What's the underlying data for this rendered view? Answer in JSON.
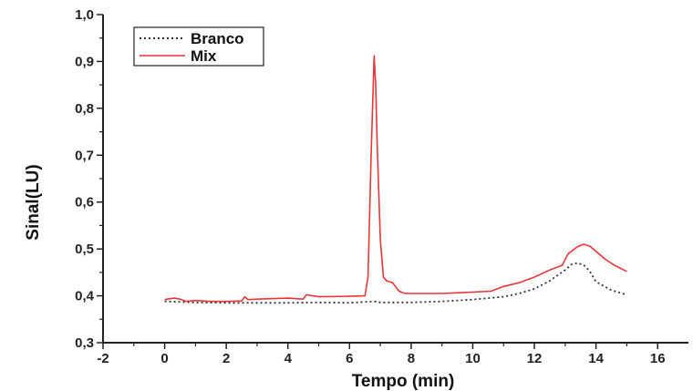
{
  "chart_data": {
    "type": "line",
    "title": "",
    "xlabel": "Tempo (min)",
    "ylabel": "Sinal(LU)",
    "xlim": [
      -2,
      17
    ],
    "ylim": [
      0.3,
      1.0
    ],
    "x_ticks": [
      -2,
      0,
      2,
      4,
      6,
      8,
      10,
      12,
      14,
      16
    ],
    "y_ticks": [
      0.3,
      0.4,
      0.5,
      0.6,
      0.7,
      0.8,
      0.9,
      1.0
    ],
    "x_tick_labels": [
      "-2",
      "0",
      "2",
      "4",
      "6",
      "8",
      "10",
      "12",
      "14",
      "16"
    ],
    "y_tick_labels": [
      "0,3",
      "0,4",
      "0,5",
      "0,6",
      "0,7",
      "0,8",
      "0,9",
      "1,0"
    ],
    "grid": false,
    "legend_position": "top-left",
    "series": [
      {
        "name": "Branco",
        "color": "#333333",
        "dash": "dotted",
        "x": [
          0,
          1,
          2,
          3,
          4,
          5,
          6,
          6.8,
          7,
          8,
          9,
          10,
          11,
          11.5,
          12,
          12.5,
          13,
          13.2,
          13.4,
          13.6,
          13.8,
          14,
          14.5,
          15
        ],
        "y": [
          0.388,
          0.386,
          0.385,
          0.385,
          0.385,
          0.386,
          0.385,
          0.388,
          0.386,
          0.386,
          0.388,
          0.392,
          0.398,
          0.405,
          0.415,
          0.432,
          0.455,
          0.467,
          0.47,
          0.466,
          0.452,
          0.43,
          0.412,
          0.402
        ]
      },
      {
        "name": "Mix",
        "color": "#e8373a",
        "dash": "solid",
        "x": [
          0,
          0.3,
          0.5,
          0.7,
          1,
          1.5,
          2,
          2.5,
          2.6,
          2.7,
          3,
          4,
          4.5,
          4.6,
          5,
          6,
          6.5,
          6.6,
          6.7,
          6.8,
          6.85,
          6.9,
          7,
          7.1,
          7.2,
          7.4,
          7.6,
          7.8,
          8,
          9,
          10,
          10.6,
          11,
          11.5,
          12,
          12.5,
          12.9,
          13.1,
          13.4,
          13.6,
          13.8,
          14,
          14.3,
          14.6,
          15
        ],
        "y": [
          0.392,
          0.395,
          0.393,
          0.388,
          0.39,
          0.388,
          0.388,
          0.389,
          0.398,
          0.392,
          0.393,
          0.395,
          0.393,
          0.402,
          0.398,
          0.399,
          0.4,
          0.44,
          0.7,
          0.912,
          0.85,
          0.72,
          0.52,
          0.44,
          0.432,
          0.428,
          0.41,
          0.405,
          0.405,
          0.405,
          0.408,
          0.41,
          0.42,
          0.428,
          0.44,
          0.455,
          0.465,
          0.49,
          0.505,
          0.51,
          0.506,
          0.495,
          0.478,
          0.465,
          0.452
        ]
      }
    ]
  }
}
